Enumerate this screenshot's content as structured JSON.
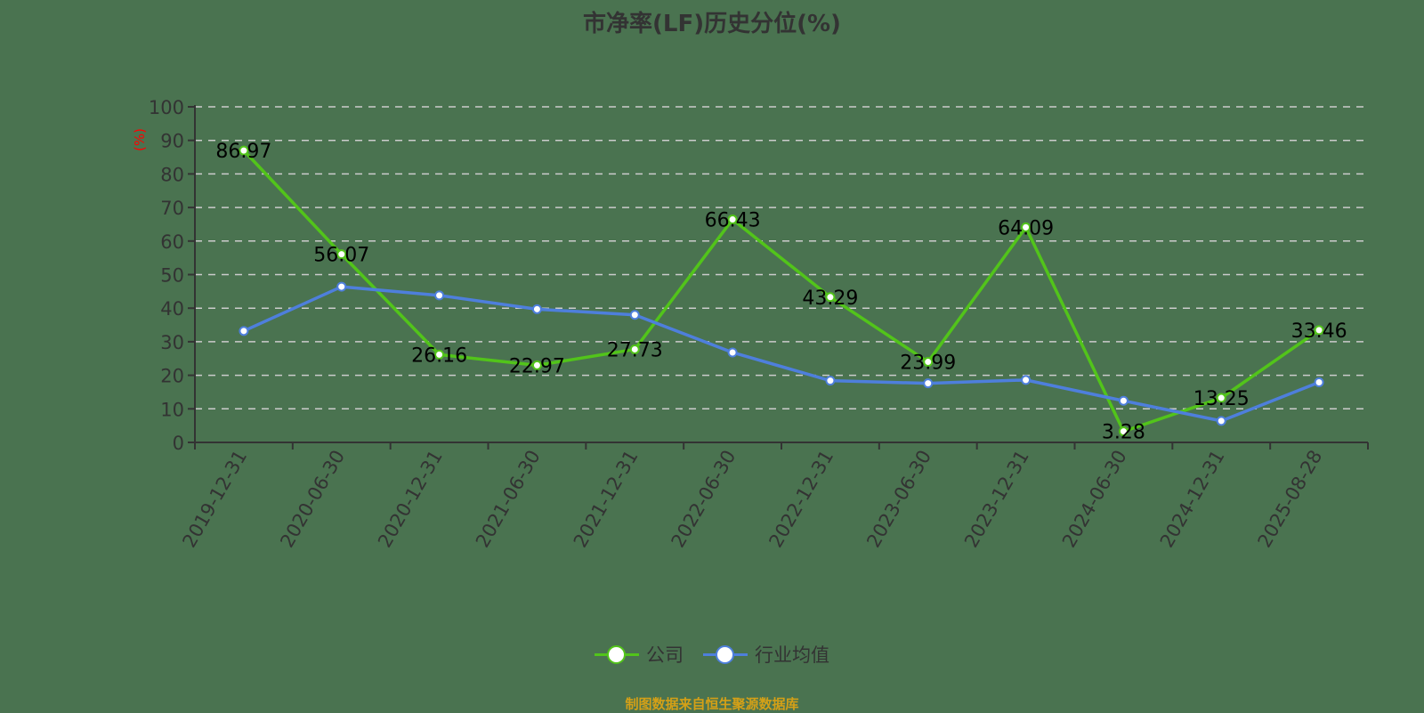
{
  "title": "市净率(LF)历史分位(%)",
  "source_note": "制图数据来自恒生聚源数据库",
  "colors": {
    "background": "#4a7350",
    "company": "#52c41a",
    "industry": "#4e7fdc",
    "axis": "#333333",
    "grid": "#cccccc",
    "ylabel": "#ff0000",
    "source": "#d4a017"
  },
  "legend": [
    {
      "label": "公司",
      "color": "#52c41a"
    },
    {
      "label": "行业均值",
      "color": "#4e7fdc"
    }
  ],
  "chart_data": {
    "type": "line",
    "title": "市净率(LF)历史分位(%)",
    "xlabel": "",
    "ylabel": "(%)",
    "ylim": [
      0,
      100
    ],
    "yticks": [
      0,
      10,
      20,
      30,
      40,
      50,
      60,
      70,
      80,
      90,
      100
    ],
    "grid": true,
    "legend_position": "bottom",
    "categories": [
      "2019-12-31",
      "2020-06-30",
      "2020-12-31",
      "2021-06-30",
      "2021-12-31",
      "2022-06-30",
      "2022-12-31",
      "2023-06-30",
      "2023-12-31",
      "2024-06-30",
      "2024-12-31",
      "2025-08-28"
    ],
    "series": [
      {
        "name": "公司",
        "values": [
          86.97,
          56.07,
          26.16,
          22.97,
          27.73,
          66.43,
          43.29,
          23.99,
          64.09,
          3.28,
          13.25,
          33.46
        ],
        "labeled": true
      },
      {
        "name": "行业均值",
        "values": [
          33.2,
          46.4,
          43.8,
          39.7,
          38.0,
          26.8,
          18.4,
          17.6,
          18.6,
          12.4,
          6.4,
          17.9
        ],
        "labeled": false
      }
    ]
  }
}
